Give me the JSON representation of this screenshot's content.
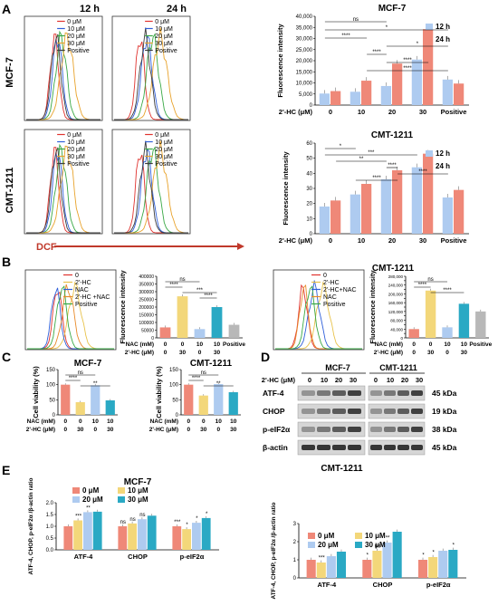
{
  "panels": {
    "A": {
      "label": "A",
      "time_headers": [
        "12 h",
        "24 h"
      ],
      "row_labels": [
        "MCF-7",
        "CMT-1211"
      ],
      "flow_legend": [
        "0  μM",
        "10 μM",
        "20 μM",
        "30 μM",
        "Positive"
      ],
      "flow_colors": [
        "#e0332f",
        "#2f5fd9",
        "#39a845",
        "#e8a22a",
        "#3c3c3c"
      ],
      "dcf_label": "DCF"
    },
    "B": {
      "label": "B",
      "flow_legend_left": [
        "0",
        "2'-HC",
        "NAC",
        "2'-HC +NAC",
        "Positive"
      ],
      "flow_legend_right": [
        "0",
        "2'-HC",
        "2'-HC+NAC",
        "NAC",
        "Positive"
      ],
      "row_nac_label": "NAC  (mM)",
      "row_hc_label": "2'-HC (μM)"
    },
    "C": {
      "label": "C",
      "row_nac_label": "NAC  (mM)",
      "row_hc_label": "2'-HC (μM)"
    },
    "D": {
      "label": "D",
      "groups": [
        "MCF-7",
        "CMT-1211"
      ],
      "hc_label": "2'-HC (μM)",
      "doses": [
        "0",
        "10",
        "20",
        "30",
        "0",
        "10",
        "20",
        "30"
      ],
      "rows": [
        {
          "name": "ATF-4",
          "kda": "45 kDa"
        },
        {
          "name": "CHOP",
          "kda": "19 kDa"
        },
        {
          "name": "p-eIF2α",
          "kda": "38 kDa"
        },
        {
          "name": "β-actin",
          "kda": "45 kDa"
        }
      ]
    },
    "E": {
      "label": "E"
    }
  },
  "chart_data": [
    {
      "id": "A_mcf7",
      "type": "bar",
      "title": "MCF-7",
      "ylabel": "Fluorescence intensity",
      "xlabel": "2'-HC (μM)",
      "categories": [
        "0",
        "10",
        "20",
        "30",
        "Positive"
      ],
      "ylim": [
        0,
        40000
      ],
      "yticks": [
        "0",
        "5,000",
        "10,000",
        "15,000",
        "20,000",
        "25,000",
        "30,000",
        "35,000",
        "40,000"
      ],
      "series": [
        {
          "name": "12 h",
          "color": "#aecbf0",
          "values": [
            5200,
            6000,
            8600,
            20500,
            11500
          ]
        },
        {
          "name": "24 h",
          "color": "#ef8878",
          "values": [
            6300,
            11000,
            18700,
            34200,
            9700
          ]
        }
      ],
      "annotations": [
        "ns",
        "*",
        "****",
        "*",
        "****",
        "****",
        "****"
      ]
    },
    {
      "id": "A_cmt",
      "type": "bar",
      "title": "CMT-1211",
      "ylabel": "Fluorescence intensity",
      "xlabel": "2'-HC (μM)",
      "categories": [
        "0",
        "10",
        "20",
        "30",
        "Positive"
      ],
      "ylim": [
        0,
        60
      ],
      "yticks": [
        "0",
        "10",
        "20",
        "30",
        "40",
        "50",
        "60"
      ],
      "series": [
        {
          "name": "12 h",
          "color": "#aecbf0",
          "values": [
            18,
            26,
            36,
            44,
            24
          ]
        },
        {
          "name": "24 h",
          "color": "#ef8878",
          "values": [
            22,
            33,
            42,
            53,
            29
          ]
        }
      ],
      "annotations": [
        "*",
        "***",
        "**",
        "****",
        "****",
        "****"
      ]
    },
    {
      "id": "B_mcf7",
      "type": "bar",
      "ylabel": "Fluorescence intensity",
      "categories": [
        "0|0",
        "0|30",
        "10|0",
        "10|30",
        "Positive"
      ],
      "ylim": [
        0,
        400000
      ],
      "yticks": [
        "0",
        "50000",
        "100000",
        "150000",
        "200000",
        "250000",
        "300000",
        "350000",
        "400000"
      ],
      "colors": [
        "#ef8878",
        "#f3d77a",
        "#aecbf0",
        "#2aa9c4",
        "#b8b8b8"
      ],
      "values": [
        68000,
        270000,
        57000,
        200000,
        85000
      ],
      "annotations": [
        "ns",
        "****",
        "***",
        "****"
      ]
    },
    {
      "id": "B_cmt",
      "type": "bar",
      "title": "CMT-1211",
      "ylabel": "Fluorescence intensity",
      "categories": [
        "0|0",
        "0|30",
        "10|0",
        "10|30",
        "Positive"
      ],
      "ylim": [
        0,
        280000
      ],
      "yticks": [
        "0",
        "20,000",
        "40,000",
        "60,000",
        "80,000",
        "100,000",
        "120,000",
        "140,000",
        "160,000",
        "180,000",
        "200,000",
        "220,000",
        "240,000",
        "260,000",
        "280,000"
      ],
      "colors": [
        "#ef8878",
        "#f3d77a",
        "#aecbf0",
        "#2aa9c4",
        "#b8b8b8"
      ],
      "values": [
        40000,
        215000,
        48000,
        155000,
        120000
      ],
      "annotations": [
        "ns",
        "****",
        "****"
      ]
    },
    {
      "id": "C_mcf7",
      "type": "bar",
      "title": "MCF-7",
      "ylabel": "Cell viability (%)",
      "categories": [
        "0|0",
        "0|30",
        "10|0",
        "10|30"
      ],
      "ylim": [
        0,
        150
      ],
      "yticks": [
        "0",
        "50",
        "100",
        "150"
      ],
      "colors": [
        "#ef8878",
        "#f3d77a",
        "#aecbf0",
        "#2aa9c4"
      ],
      "values": [
        100,
        42,
        98,
        48
      ],
      "annotations": [
        "ns",
        "****",
        "**"
      ]
    },
    {
      "id": "C_cmt",
      "type": "bar",
      "title": "CMT-1211",
      "ylabel": "Cell viability (%)",
      "categories": [
        "0|0",
        "0|30",
        "10|0",
        "10|30"
      ],
      "ylim": [
        0,
        150
      ],
      "yticks": [
        "0",
        "50",
        "100",
        "150"
      ],
      "colors": [
        "#ef8878",
        "#f3d77a",
        "#aecbf0",
        "#2aa9c4"
      ],
      "values": [
        100,
        64,
        102,
        75
      ],
      "annotations": [
        "ns",
        "****",
        "**"
      ]
    },
    {
      "id": "E_mcf7",
      "type": "bar",
      "title": "MCF-7",
      "ylabel": "ATF-4, CHOP, p-eIF2α /β-actin ratio",
      "categories": [
        "ATF-4",
        "CHOP",
        "p-eIF2α"
      ],
      "ylim": [
        0,
        2.0
      ],
      "yticks": [
        "0.0",
        "0.5",
        "1.0",
        "1.5",
        "2.0"
      ],
      "series": [
        {
          "name": "0  μM",
          "color": "#ef8878",
          "values": [
            1.0,
            1.0,
            1.0
          ]
        },
        {
          "name": "10 μM",
          "color": "#f3d77a",
          "values": [
            1.25,
            1.12,
            0.88
          ]
        },
        {
          "name": "20 μM",
          "color": "#aecbf0",
          "values": [
            1.6,
            1.3,
            1.15
          ]
        },
        {
          "name": "30 μM",
          "color": "#2aa9c4",
          "values": [
            1.62,
            1.45,
            1.35
          ]
        }
      ],
      "annotations": [
        "ns",
        "***",
        "***",
        "ns",
        "*",
        "**",
        "ns",
        "*",
        "*"
      ]
    },
    {
      "id": "E_cmt",
      "type": "bar",
      "title": "CMT-1211",
      "ylabel": "ATF-4, CHOP, p-eIF2α /β-actin ratio",
      "categories": [
        "ATF-4",
        "CHOP",
        "p-eIF2α"
      ],
      "ylim": [
        0,
        3
      ],
      "yticks": [
        "0",
        "1",
        "2",
        "3"
      ],
      "series": [
        {
          "name": "0  μM",
          "color": "#ef8878",
          "values": [
            1.0,
            1.0,
            1.0
          ]
        },
        {
          "name": "10 μM",
          "color": "#f3d77a",
          "values": [
            0.85,
            1.5,
            1.15
          ]
        },
        {
          "name": "20 μM",
          "color": "#aecbf0",
          "values": [
            1.2,
            1.95,
            1.5
          ]
        },
        {
          "name": "30 μM",
          "color": "#2aa9c4",
          "values": [
            1.45,
            2.55,
            1.55
          ]
        }
      ],
      "annotations": [
        "*",
        "*",
        "***",
        "**",
        "ns",
        "*",
        "*"
      ]
    }
  ]
}
